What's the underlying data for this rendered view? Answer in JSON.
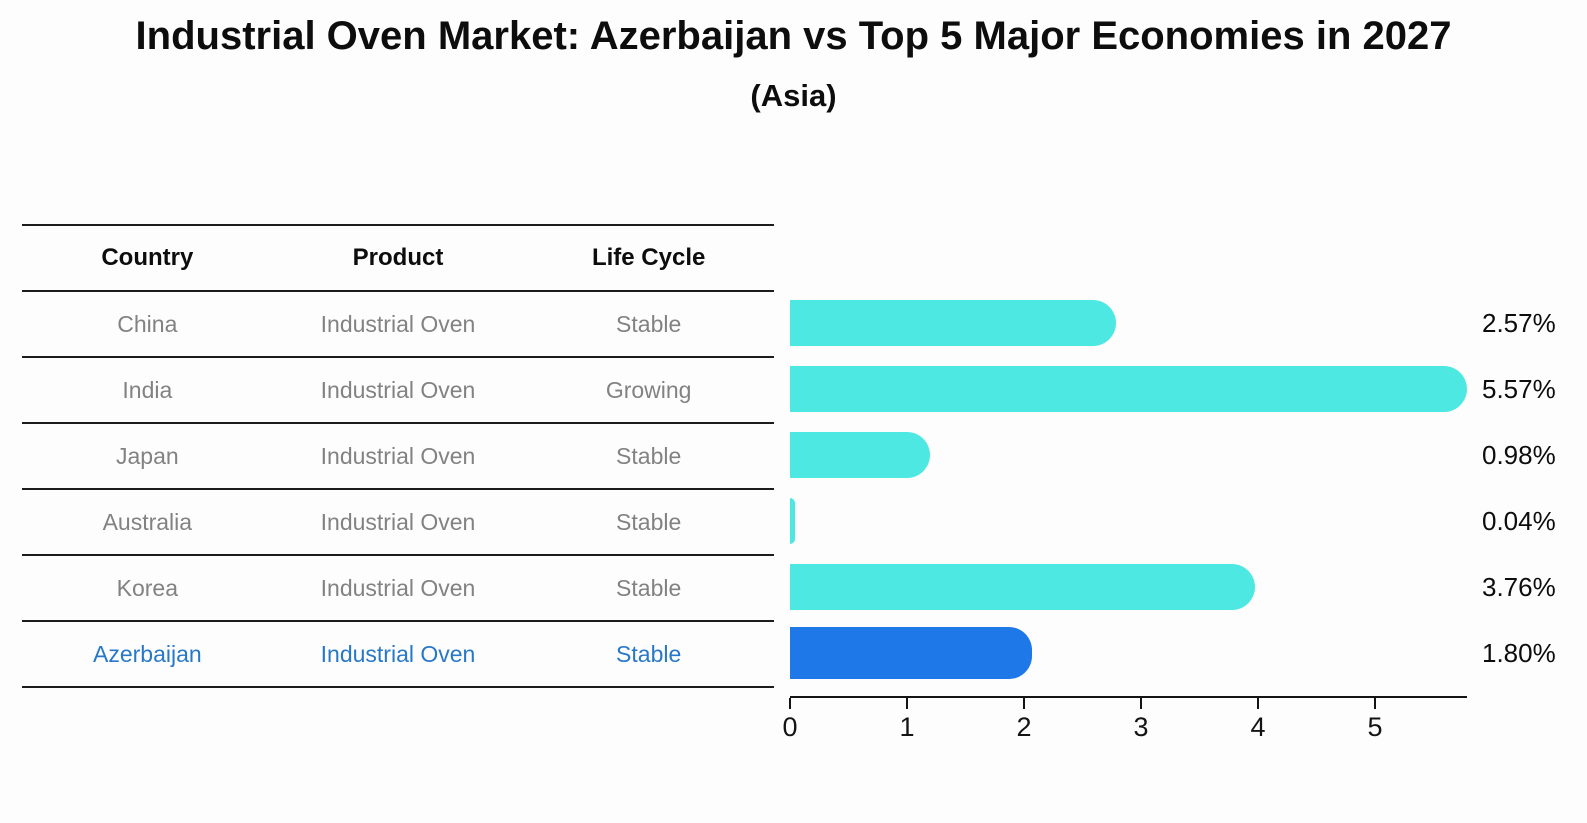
{
  "title": "Industrial Oven Market: Azerbaijan vs Top 5 Major Economies in 2027",
  "subtitle": "(Asia)",
  "table": {
    "headers": [
      "Country",
      "Product",
      "Life Cycle"
    ],
    "rows": [
      {
        "country": "China",
        "product": "Industrial Oven",
        "life_cycle": "Stable",
        "value": 2.57,
        "value_label": "2.57%",
        "highlight": false
      },
      {
        "country": "India",
        "product": "Industrial Oven",
        "life_cycle": "Growing",
        "value": 5.57,
        "value_label": "5.57%",
        "highlight": false
      },
      {
        "country": "Japan",
        "product": "Industrial Oven",
        "life_cycle": "Stable",
        "value": 0.98,
        "value_label": "0.98%",
        "highlight": false
      },
      {
        "country": "Australia",
        "product": "Industrial Oven",
        "life_cycle": "Stable",
        "value": 0.04,
        "value_label": "0.04%",
        "highlight": false
      },
      {
        "country": "Korea",
        "product": "Industrial Oven",
        "life_cycle": "Stable",
        "value": 3.76,
        "value_label": "3.76%",
        "highlight": false
      },
      {
        "country": "Azerbaijan",
        "product": "Industrial Oven",
        "life_cycle": "Stable",
        "value": 1.8,
        "value_label": "1.80%",
        "highlight": true
      }
    ]
  },
  "chart_data": {
    "type": "bar",
    "orientation": "horizontal",
    "title": "Industrial Oven Market: Azerbaijan vs Top 5 Major Economies in 2027",
    "subtitle": "(Asia)",
    "categories": [
      "China",
      "India",
      "Japan",
      "Australia",
      "Korea",
      "Azerbaijan"
    ],
    "values": [
      2.57,
      5.57,
      0.98,
      0.04,
      3.76,
      1.8
    ],
    "data_labels": [
      "2.57%",
      "5.57%",
      "0.98%",
      "0.04%",
      "3.76%",
      "1.80%"
    ],
    "xlabel": "",
    "ylabel": "",
    "xticks": [
      0,
      1,
      2,
      3,
      4,
      5
    ],
    "xlim": [
      0,
      5.79
    ],
    "grid": false,
    "legend": false,
    "highlight_category": "Azerbaijan"
  },
  "colors": {
    "bar": "#4DE8E2",
    "highlight_bar": "#1E78E8",
    "highlight_text": "#2878C8",
    "text": "#0d0d0d",
    "muted_text": "#828282",
    "line": "#1c1c1c"
  }
}
